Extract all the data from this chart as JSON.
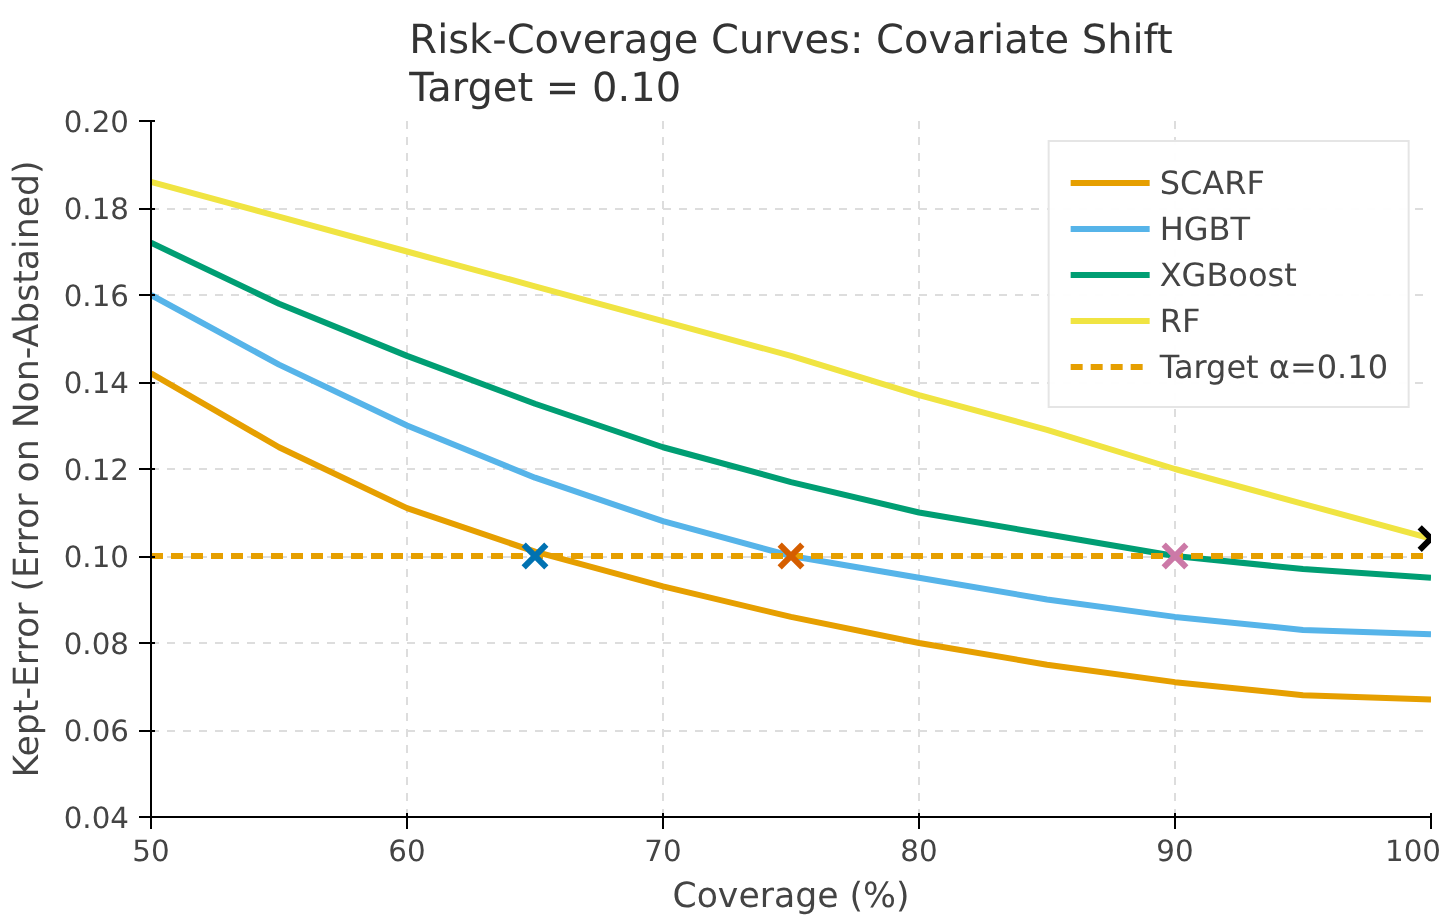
{
  "chart_data": {
    "type": "line",
    "title": "Risk-Coverage Curves: Covariate Shift\nTarget = 0.10",
    "xlabel": "Coverage (%)",
    "ylabel": "Kept-Error (Error on Non-Abstained)",
    "x": [
      50,
      55,
      60,
      65,
      70,
      75,
      80,
      85,
      90,
      95,
      100
    ],
    "series": [
      {
        "name": "SCARF",
        "color": "#e69f00",
        "values": [
          0.142,
          0.125,
          0.111,
          0.101,
          0.093,
          0.086,
          0.08,
          0.075,
          0.071,
          0.068,
          0.067
        ]
      },
      {
        "name": "HGBT",
        "color": "#56b4e9",
        "values": [
          0.16,
          0.144,
          0.13,
          0.118,
          0.108,
          0.1,
          0.095,
          0.09,
          0.086,
          0.083,
          0.082
        ]
      },
      {
        "name": "XGBoost",
        "color": "#009e73",
        "values": [
          0.172,
          0.158,
          0.146,
          0.135,
          0.125,
          0.117,
          0.11,
          0.105,
          0.1,
          0.097,
          0.095
        ]
      },
      {
        "name": "RF",
        "color": "#f0e442",
        "values": [
          0.186,
          0.178,
          0.17,
          0.162,
          0.154,
          0.146,
          0.137,
          0.129,
          0.12,
          0.112,
          0.104
        ]
      },
      {
        "name": "Target α=0.10",
        "color": "#e69f00",
        "line_style": "dashed",
        "x": [
          50,
          100
        ],
        "values": [
          0.1,
          0.1
        ]
      },
      {
        "type": "scatter",
        "marker": "cross",
        "color": "#0072b2",
        "x": [
          65
        ],
        "values": [
          0.1
        ]
      },
      {
        "type": "scatter",
        "marker": "cross",
        "color": "#d55e00",
        "x": [
          75
        ],
        "values": [
          0.1
        ]
      },
      {
        "type": "scatter",
        "marker": "cross",
        "color": "#cc79a7",
        "x": [
          90
        ],
        "values": [
          0.1
        ]
      },
      {
        "type": "scatter",
        "marker": "cross",
        "color": "#000000",
        "x": [
          100
        ],
        "values": [
          0.104
        ]
      }
    ],
    "xlim": [
      50,
      100
    ],
    "xticks": [
      50,
      60,
      70,
      80,
      90,
      100
    ],
    "ylim": [
      0.04,
      0.2
    ],
    "yticks": [
      {
        "value": 0.04,
        "label": "0.04"
      },
      {
        "value": 0.06,
        "label": "0.06"
      },
      {
        "value": 0.08,
        "label": "0.08"
      },
      {
        "value": 0.1,
        "label": "0.10"
      },
      {
        "value": 0.12,
        "label": "0.12"
      },
      {
        "value": 0.14,
        "label": "0.14"
      },
      {
        "value": 0.16,
        "label": "0.16"
      },
      {
        "value": 0.18,
        "label": "0.18"
      },
      {
        "value": 0.2,
        "label": "0.20"
      }
    ],
    "grid": true,
    "legend": "top right",
    "line_style": "solid"
  }
}
